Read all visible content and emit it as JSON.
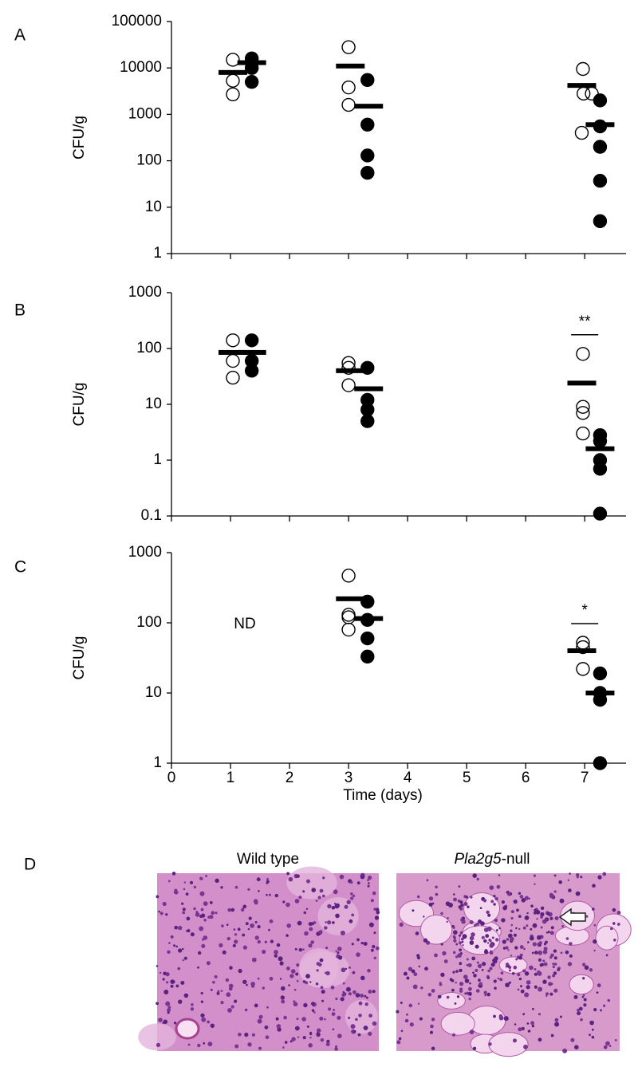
{
  "chart_data": [
    {
      "type": "scatter",
      "panel_label": "A",
      "ylabel": "CFU/g",
      "log_y": true,
      "xlim": [
        0,
        7.7
      ],
      "ylim": [
        1,
        100000
      ],
      "xticks": [
        0,
        1,
        2,
        3,
        4,
        5,
        6,
        7
      ],
      "xtick_labels": false,
      "yticks": [
        1,
        10,
        100,
        1000,
        10000,
        100000
      ],
      "series": [
        {
          "marker": "open",
          "color": "#000000",
          "x": [
            1.04,
            1.04,
            1.04,
            3.0,
            3.0,
            3.0,
            6.97,
            6.98,
            7.12,
            6.95
          ],
          "values": [
            15000,
            5300,
            2700,
            28000,
            3800,
            1600,
            9500,
            2800,
            2800,
            400
          ]
        },
        {
          "marker": "filled",
          "color": "#000000",
          "x": [
            1.36,
            1.36,
            1.36,
            3.32,
            3.32,
            3.32,
            3.32,
            7.26,
            7.26,
            7.26,
            7.26,
            7.26
          ],
          "values": [
            16000,
            10000,
            5000,
            5500,
            600,
            130,
            55,
            2000,
            550,
            200,
            37,
            5
          ]
        },
        {
          "marker": "mean-bar",
          "color": "#000000",
          "x": [
            1.04,
            1.36,
            3.03,
            3.34,
            6.95,
            7.26
          ],
          "values": [
            8000,
            13000,
            11000,
            1500,
            4200,
            600
          ]
        }
      ],
      "annotations": []
    },
    {
      "type": "scatter",
      "panel_label": "B",
      "ylabel": "CFU/g",
      "log_y": true,
      "xlim": [
        0,
        7.7
      ],
      "ylim": [
        0.1,
        1000
      ],
      "xticks": [
        0,
        1,
        2,
        3,
        4,
        5,
        6,
        7
      ],
      "xtick_labels": false,
      "yticks": [
        0.1,
        1,
        10,
        100,
        1000
      ],
      "series": [
        {
          "marker": "open",
          "color": "#000000",
          "x": [
            1.04,
            1.04,
            1.04,
            3.0,
            3.0,
            3.0,
            6.97,
            6.97,
            6.97,
            6.97
          ],
          "values": [
            140,
            60,
            30,
            55,
            45,
            22,
            80,
            9,
            7,
            3
          ]
        },
        {
          "marker": "filled",
          "color": "#000000",
          "x": [
            1.36,
            1.36,
            1.36,
            3.32,
            3.32,
            3.32,
            3.32,
            7.26,
            7.26,
            7.26,
            7.26,
            7.26
          ],
          "values": [
            140,
            60,
            40,
            45,
            12,
            8,
            5,
            2.8,
            2.2,
            1,
            0.7,
            0.11
          ]
        },
        {
          "marker": "mean-bar",
          "color": "#000000",
          "x": [
            1.04,
            1.36,
            3.03,
            3.34,
            6.95,
            7.26
          ],
          "values": [
            85,
            85,
            40,
            19,
            24,
            1.6
          ]
        }
      ],
      "annotations": [
        {
          "text": "**",
          "at_x": 7,
          "bracket": true
        }
      ]
    },
    {
      "type": "scatter",
      "panel_label": "C",
      "ylabel": "CFU/g",
      "xlabel": "Time (days)",
      "log_y": true,
      "xlim": [
        0,
        7.7
      ],
      "ylim": [
        1,
        1000
      ],
      "xticks": [
        0,
        1,
        2,
        3,
        4,
        5,
        6,
        7
      ],
      "xtick_labels": true,
      "yticks": [
        1,
        10,
        100,
        1000
      ],
      "series": [
        {
          "marker": "open",
          "color": "#000000",
          "x": [
            3.0,
            3.0,
            3.0,
            3.0,
            6.97,
            6.97,
            6.97
          ],
          "values": [
            470,
            130,
            120,
            80,
            52,
            45,
            22
          ]
        },
        {
          "marker": "filled",
          "color": "#000000",
          "x": [
            3.32,
            3.32,
            3.32,
            3.32,
            7.26,
            7.26,
            7.26,
            7.26
          ],
          "values": [
            200,
            110,
            60,
            33,
            19,
            10,
            8,
            1
          ]
        },
        {
          "marker": "mean-bar",
          "color": "#000000",
          "x": [
            3.03,
            3.34,
            6.95,
            7.26
          ],
          "values": [
            220,
            115,
            40,
            10
          ]
        }
      ],
      "annotations": [
        {
          "text": "ND",
          "at_x": 1,
          "bracket": false
        },
        {
          "text": "*",
          "at_x": 7,
          "bracket": true
        }
      ]
    }
  ],
  "panel_d": {
    "panel_label": "D",
    "caption_left": "Wild type",
    "caption_right": [
      "Pla2g5",
      "-null"
    ]
  }
}
